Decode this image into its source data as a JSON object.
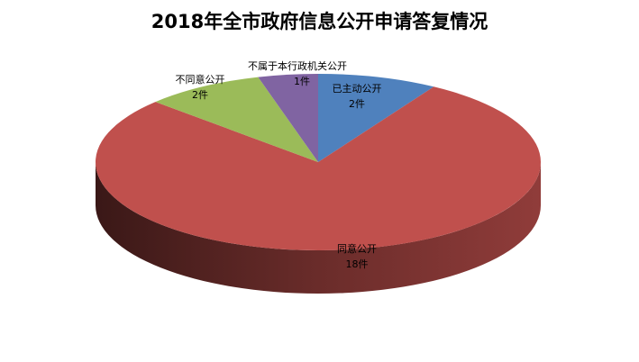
{
  "chart_data": {
    "type": "pie",
    "title": "2018年全市政府信息公开申请答复情况",
    "three_d": true,
    "start_angle": "top, clockwise",
    "slices": [
      {
        "label": "已主动公开",
        "value": 2,
        "value_label": "2件",
        "color": "#4f81bd"
      },
      {
        "label": "同意公开",
        "value": 18,
        "value_label": "18件",
        "color": "#c0504d"
      },
      {
        "label": "不同意公开",
        "value": 2,
        "value_label": "2件",
        "color": "#9bbb59"
      },
      {
        "label": "不属于本行政机关公开",
        "value": 1,
        "value_label": "1件",
        "color": "#8064a2"
      }
    ],
    "legend": "none"
  }
}
